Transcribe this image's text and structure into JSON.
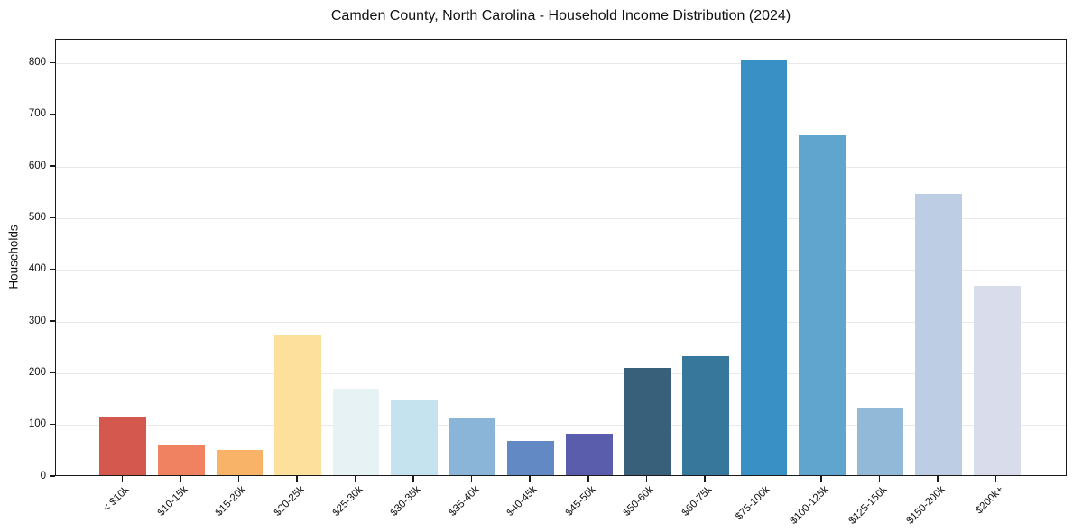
{
  "chart_data": {
    "type": "bar",
    "title": "Camden County, North Carolina - Household Income Distribution (2024)",
    "xlabel": "",
    "ylabel": "Households",
    "categories": [
      "< $10k",
      "$10-15k",
      "$15-20k",
      "$20-25k",
      "$25-30k",
      "$30-35k",
      "$35-40k",
      "$40-45k",
      "$45-50k",
      "$50-60k",
      "$60-75k",
      "$75-100k",
      "$100-125k",
      "$125-150k",
      "$150-200k",
      "$200k+"
    ],
    "values": [
      112,
      60,
      49,
      270,
      167,
      144,
      110,
      67,
      81,
      207,
      231,
      803,
      658,
      130,
      545,
      366
    ],
    "bar_colors": [
      "#d4584e",
      "#f08262",
      "#f9b368",
      "#fce09c",
      "#e7f2f5",
      "#c4e3ef",
      "#8ab4d8",
      "#6289c4",
      "#5a5dac",
      "#38607a",
      "#38779c",
      "#3990c4",
      "#5fa5cd",
      "#92bad8",
      "#bccde4",
      "#d9dcea"
    ],
    "ylim": [
      0,
      846
    ],
    "yticks": [
      0,
      100,
      200,
      300,
      400,
      500,
      600,
      700,
      800
    ],
    "grid": "horizontal",
    "grid_color": "#e9e9e9",
    "axis_color": "#1a1a1a",
    "background": "#ffffff",
    "legend": "none"
  }
}
